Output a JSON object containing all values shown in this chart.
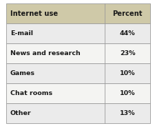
{
  "col1_header": "Internet use",
  "col2_header": "Percent",
  "rows": [
    [
      "E-mail",
      "44%"
    ],
    [
      "News and research",
      "23%"
    ],
    [
      "Games",
      "10%"
    ],
    [
      "Chat rooms",
      "10%"
    ],
    [
      "Other",
      "13%"
    ]
  ],
  "header_bg": "#cfc9a8",
  "row_bg_light": "#ebebeb",
  "row_bg_white": "#f4f4f2",
  "border_color": "#999999",
  "text_color": "#1a1a1a",
  "header_fontsize": 7.2,
  "row_fontsize": 6.8,
  "fig_bg": "#ffffff",
  "col_split": 0.635
}
